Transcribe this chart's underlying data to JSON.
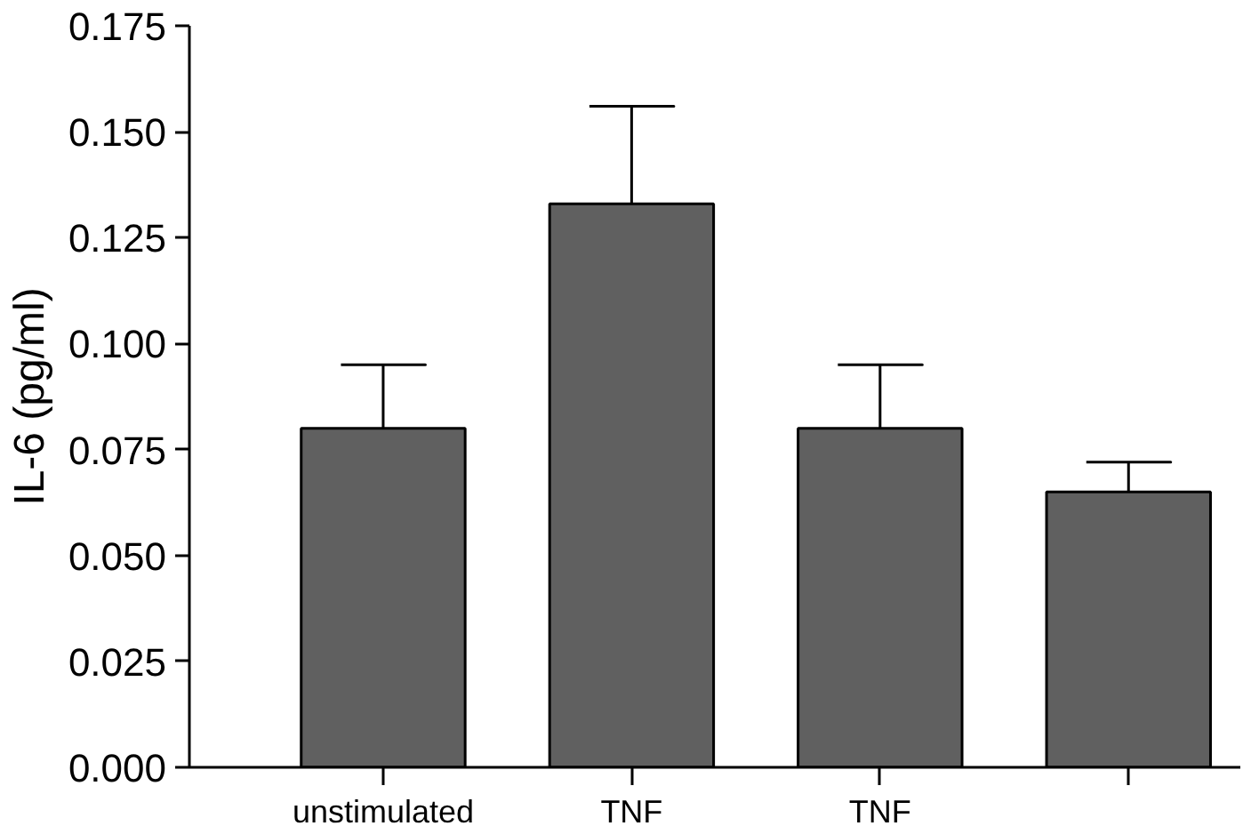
{
  "chart_data": {
    "type": "bar",
    "ylabel": "IL-6 (pg/ml)",
    "categories": [
      "unstimulated",
      "TNF",
      "TNF",
      null
    ],
    "values": [
      0.08,
      0.133,
      0.08,
      0.065
    ],
    "errors": [
      [
        0.08,
        0.095
      ],
      [
        0.133,
        0.156
      ],
      [
        0.08,
        0.095
      ],
      [
        0.065,
        0.072
      ]
    ],
    "color": "#606060",
    "ylim": [
      0,
      0.175
    ],
    "yticks": [
      {
        "value": 0,
        "label": "0.000"
      },
      0.025,
      {
        "value": 0.05,
        "label": "0.050"
      },
      0.075,
      {
        "value": 0.1,
        "label": "0.100"
      },
      0.125,
      {
        "value": 0.15,
        "label": "0.150"
      },
      0.175
    ],
    "grid": false
  }
}
